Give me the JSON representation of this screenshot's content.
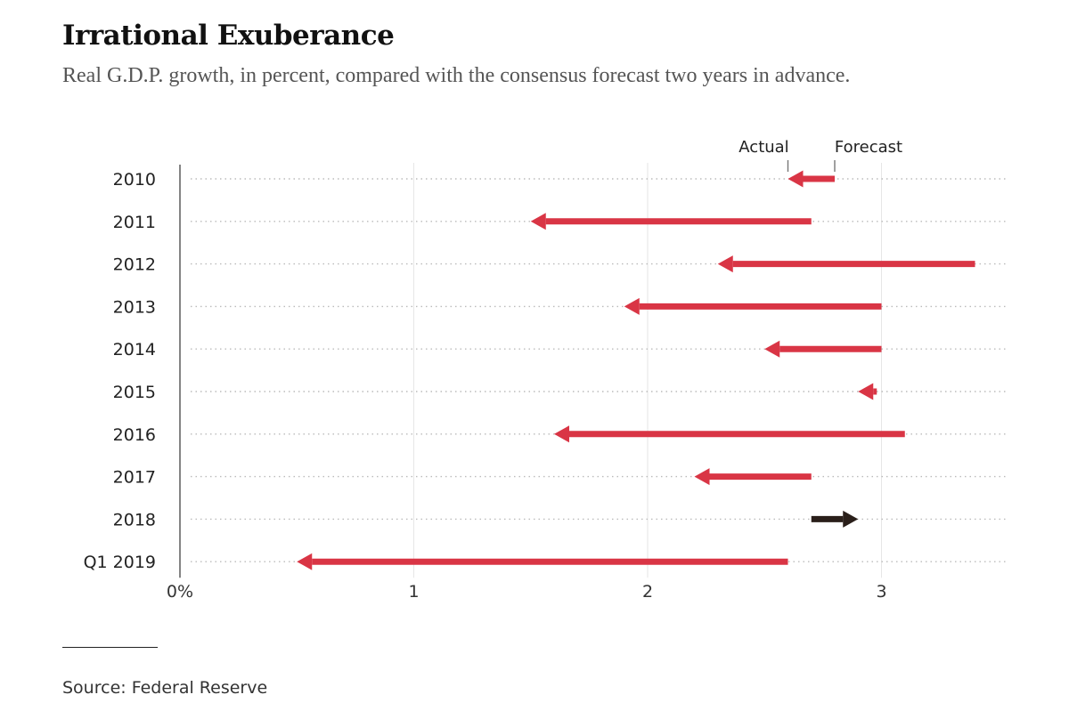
{
  "title": "Irrational Exuberance",
  "subtitle": "Real G.D.P. growth, in percent, compared with the consensus forecast two years in advance.",
  "source": "Source: Federal Reserve",
  "colors": {
    "miss_low": "#d93545",
    "miss_high": "#2a1f1a",
    "gridline": "#bbbbbb",
    "axis": "#666666"
  },
  "chart_data": {
    "type": "arrow",
    "categories": [
      "2010",
      "2011",
      "2012",
      "2013",
      "2014",
      "2015",
      "2016",
      "2017",
      "2018",
      "Q1 2019"
    ],
    "series": [
      {
        "name": "Forecast",
        "values": [
          2.8,
          2.7,
          3.4,
          3.0,
          3.0,
          2.98,
          3.1,
          2.7,
          2.7,
          2.6
        ]
      },
      {
        "name": "Actual",
        "values": [
          2.6,
          1.5,
          2.3,
          1.9,
          2.5,
          2.9,
          1.6,
          2.2,
          2.9,
          0.5
        ]
      }
    ],
    "xticks": [
      "0%",
      "1",
      "2",
      "3"
    ],
    "xlim": [
      0,
      3.5
    ],
    "grid": true,
    "legend": "top-right"
  }
}
